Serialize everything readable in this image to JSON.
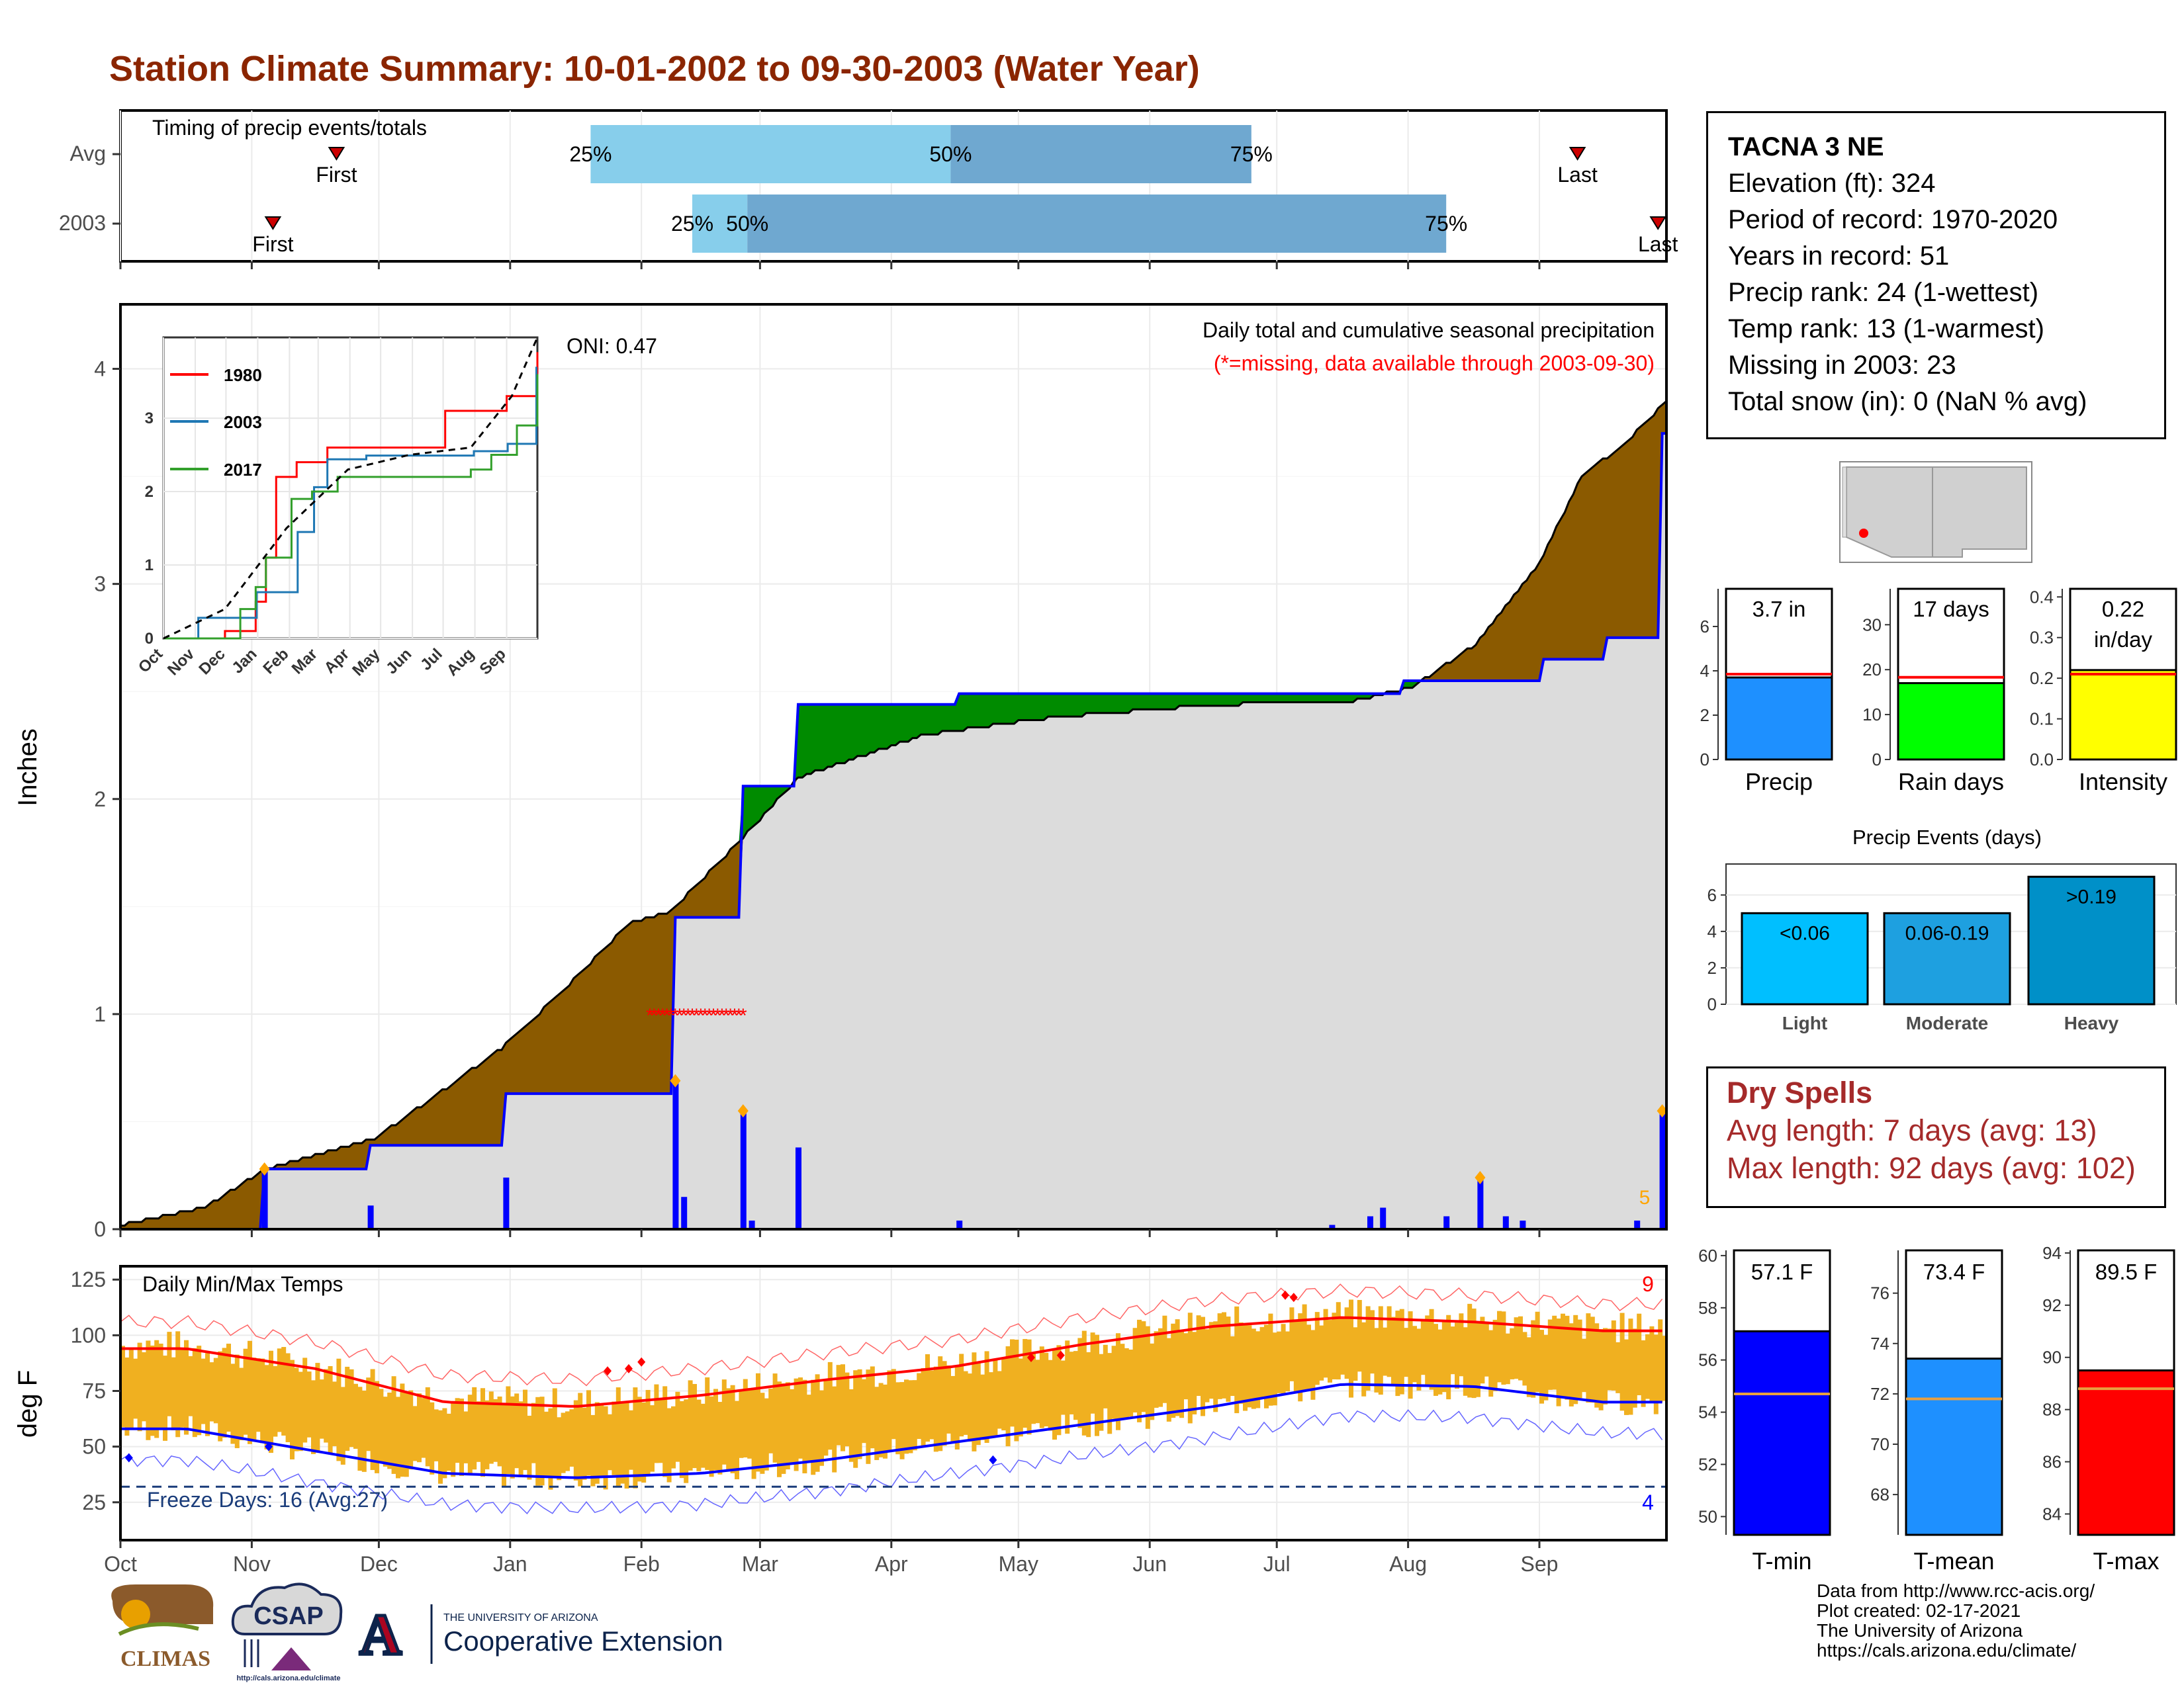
{
  "title": "Station Climate Summary: 10-01-2002 to 09-30-2003 (Water Year)",
  "colors": {
    "title": "#8b2500",
    "brown": "#8b5a00",
    "green": "#008b00",
    "blue": "#0000ff",
    "gray_fill": "#dcdcdc",
    "light_blue": "#87ceeb",
    "mid_blue": "#6fa8d0",
    "orange": "#f0b020",
    "red": "#ff0000",
    "dry_red": "#a52a2a"
  },
  "timing": {
    "label": "Timing of precip events/totals",
    "rows": [
      {
        "name": "Avg",
        "first": "Nov 21",
        "p25": "Jan 20",
        "p50": "Apr 15",
        "p75": "Jun 25",
        "last": "Sep 10"
      },
      {
        "name": "2003",
        "first": "Nov 6",
        "p25": "Feb 13",
        "p50": "Feb 26",
        "p75": "Aug 10",
        "last": "Sep 29"
      }
    ],
    "first_label": "First",
    "last_label": "Last",
    "p25_label": "25%",
    "p50_label": "50%",
    "p75_label": "75%"
  },
  "precip": {
    "ylabel": "Inches",
    "caption": "Daily total and cumulative seasonal precipitation",
    "missing_note": "(*=missing, data available through 2003-09-30)",
    "oni": "ONI: 0.47",
    "yticks": [
      "0",
      "1",
      "2",
      "3",
      "4"
    ],
    "corner_count": "5"
  },
  "inset": {
    "legend": [
      "1980",
      "2003",
      "2017"
    ],
    "yticks": [
      "0",
      "1",
      "2",
      "3"
    ],
    "xticks": [
      "Oct",
      "Nov",
      "Dec",
      "Jan",
      "Feb",
      "Mar",
      "Apr",
      "May",
      "Jun",
      "Jul",
      "Aug",
      "Sep"
    ]
  },
  "temps": {
    "ylabel": "deg F",
    "label": "Daily Min/Max Temps",
    "freeze": "Freeze Days: 16 (Avg:27)",
    "yticks": [
      "25",
      "50",
      "75",
      "100",
      "125"
    ],
    "max_count": "9",
    "min_count": "4"
  },
  "months": [
    "Oct",
    "Nov",
    "Dec",
    "Jan",
    "Feb",
    "Mar",
    "Apr",
    "May",
    "Jun",
    "Jul",
    "Aug",
    "Sep"
  ],
  "station": {
    "name": "TACNA 3 NE",
    "lines": [
      "Elevation (ft): 324",
      "Period of record: 1970-2020",
      "Years in record: 51",
      "Precip rank: 24 (1-wettest)",
      "Temp rank: 13 (1-warmest)",
      "Missing in 2003: 23",
      "Total snow (in): 0 (NaN % avg)"
    ]
  },
  "dry_spells": {
    "title": "Dry Spells",
    "avg": "Avg length: 7 days (avg: 13)",
    "max": "Max length: 92 days (avg: 102)"
  },
  "footer": [
    "Data from http://www.rcc-acis.org/",
    "Plot created: 02-17-2021",
    "The University of Arizona",
    "https://cals.arizona.edu/climate/"
  ],
  "logos": {
    "climas": "CLIMAS",
    "csap": "CSAP",
    "csap_url": "http://cals.arizona.edu/climate",
    "ua_line1": "THE UNIVERSITY OF ARIZONA",
    "ua_line2": "Cooperative Extension",
    "ua_mark": "A"
  },
  "chart_data": [
    {
      "type": "area",
      "title": "Daily total and cumulative seasonal precipitation",
      "ylabel": "Inches",
      "ylim": [
        0,
        4.3
      ],
      "x_start": "2002-10-01",
      "x_end": "2003-09-30",
      "series": [
        {
          "name": "2003",
          "cumulative": [
            [
              0,
              0
            ],
            [
              34,
              0.28
            ],
            [
              58,
              0.28
            ],
            [
              59,
              0.39
            ],
            [
              90,
              0.39
            ],
            [
              91,
              0.63
            ],
            [
              130,
              0.63
            ],
            [
              131,
              1.45
            ],
            [
              146,
              1.45
            ],
            [
              147,
              2.06
            ],
            [
              159,
              2.06
            ],
            [
              160,
              2.44
            ],
            [
              197,
              2.44
            ],
            [
              198,
              2.49
            ],
            [
              302,
              2.49
            ],
            [
              303,
              2.55
            ],
            [
              335,
              2.55
            ],
            [
              336,
              2.65
            ],
            [
              350,
              2.65
            ],
            [
              351,
              2.75
            ],
            [
              363,
              2.75
            ],
            [
              364,
              3.7
            ],
            [
              365,
              3.7
            ]
          ]
        },
        {
          "cumulative_avg": [
            [
              0,
              0.02
            ],
            [
              20,
              0.1
            ],
            [
              34,
              0.28
            ],
            [
              60,
              0.42
            ],
            [
              90,
              0.84
            ],
            [
              105,
              1.12
            ],
            [
              120,
              1.42
            ],
            [
              130,
              1.48
            ],
            [
              145,
              1.78
            ],
            [
              160,
              2.1
            ],
            [
              190,
              2.3
            ],
            [
              220,
              2.38
            ],
            [
              260,
              2.44
            ],
            [
              290,
              2.45
            ],
            [
              305,
              2.52
            ],
            [
              320,
              2.72
            ],
            [
              335,
              3.1
            ],
            [
              345,
              3.5
            ],
            [
              355,
              3.65
            ],
            [
              365,
              3.85
            ]
          ]
        }
      ],
      "daily_bars": [
        [
          34,
          0.28
        ],
        [
          59,
          0.11
        ],
        [
          91,
          0.24
        ],
        [
          131,
          0.69
        ],
        [
          133,
          0.15
        ],
        [
          147,
          0.55
        ],
        [
          149,
          0.04
        ],
        [
          160,
          0.38
        ],
        [
          198,
          0.04
        ],
        [
          286,
          0.02
        ],
        [
          295,
          0.06
        ],
        [
          298,
          0.1
        ],
        [
          313,
          0.06
        ],
        [
          321,
          0.24
        ],
        [
          327,
          0.06
        ],
        [
          331,
          0.04
        ],
        [
          358,
          0.04
        ],
        [
          364,
          0.55
        ]
      ],
      "missing": {
        "from": 125,
        "to": 147,
        "y": 1.0
      }
    },
    {
      "type": "line",
      "title": "inset cumulative precipitation",
      "ylim": [
        0,
        4.1
      ],
      "series": [
        {
          "name": "1980",
          "values": [
            [
              0,
              0
            ],
            [
              40,
              0
            ],
            [
              60,
              0.1
            ],
            [
              75,
              0.1
            ],
            [
              90,
              0.5
            ],
            [
              100,
              1.1
            ],
            [
              110,
              2.2
            ],
            [
              130,
              2.4
            ],
            [
              160,
              2.6
            ],
            [
              200,
              2.6
            ],
            [
              260,
              2.6
            ],
            [
              275,
              3.1
            ],
            [
              320,
              3.1
            ],
            [
              335,
              3.3
            ],
            [
              365,
              3.9
            ]
          ]
        },
        {
          "name": "2003",
          "values": [
            [
              0,
              0
            ],
            [
              34,
              0.28
            ],
            [
              91,
              0.63
            ],
            [
              131,
              1.45
            ],
            [
              147,
              2.06
            ],
            [
              160,
              2.44
            ],
            [
              198,
              2.49
            ],
            [
              303,
              2.55
            ],
            [
              336,
              2.65
            ],
            [
              364,
              3.7
            ]
          ]
        },
        {
          "name": "2017",
          "values": [
            [
              0,
              0
            ],
            [
              60,
              0
            ],
            [
              75,
              0.4
            ],
            [
              90,
              0.7
            ],
            [
              100,
              1.1
            ],
            [
              115,
              1.1
            ],
            [
              125,
              1.9
            ],
            [
              145,
              2
            ],
            [
              170,
              2.2
            ],
            [
              220,
              2.2
            ],
            [
              300,
              2.3
            ],
            [
              320,
              2.5
            ],
            [
              345,
              2.9
            ],
            [
              365,
              3.6
            ]
          ]
        },
        {
          "name": "average",
          "values": [
            [
              0,
              0
            ],
            [
              60,
              0.4
            ],
            [
              120,
              1.5
            ],
            [
              180,
              2.3
            ],
            [
              240,
              2.5
            ],
            [
              300,
              2.6
            ],
            [
              340,
              3.3
            ],
            [
              365,
              4.1
            ]
          ]
        }
      ]
    },
    {
      "type": "bar",
      "title": "Precip",
      "categories": [
        "Precip",
        "Rain days",
        "Intensity"
      ],
      "values": [
        3.7,
        17,
        0.22
      ],
      "averages": [
        3.85,
        18.3,
        0.21
      ],
      "ylims": [
        [
          0,
          7.7
        ],
        [
          0,
          38
        ],
        [
          0,
          0.42
        ]
      ]
    },
    {
      "type": "bar",
      "title": "Precip Events (days)",
      "categories": [
        "Light",
        "Moderate",
        "Heavy"
      ],
      "bar_labels": [
        "<0.06",
        "0.06-0.19",
        ">0.19"
      ],
      "values": [
        5,
        5,
        7
      ],
      "ylim": [
        0,
        7.7
      ]
    },
    {
      "type": "bar",
      "title": "Temperature",
      "categories": [
        "T-min",
        "T-mean",
        "T-max"
      ],
      "bar_labels": [
        "57.1 F",
        "73.4 F",
        "89.5 F"
      ],
      "values": [
        57.1,
        73.4,
        89.5
      ],
      "averages": [
        54.7,
        71.8,
        88.8
      ],
      "ylims": [
        [
          49.3,
          60.2
        ],
        [
          66.4,
          77.7
        ],
        [
          83.2,
          94.1
        ]
      ]
    },
    {
      "type": "line",
      "title": "Daily Min/Max Temps",
      "ylabel": "deg F",
      "ylim": [
        8,
        131
      ],
      "freeze_line": 32,
      "series": [
        {
          "name": "Tmax",
          "monthly_means": [
            94,
            85,
            70,
            68,
            73,
            80,
            86,
            96,
            104,
            108,
            106,
            102
          ]
        },
        {
          "name": "Tmin",
          "monthly_means": [
            58,
            48,
            38,
            36,
            38,
            44,
            52,
            60,
            68,
            78,
            77,
            70
          ]
        }
      ]
    }
  ]
}
